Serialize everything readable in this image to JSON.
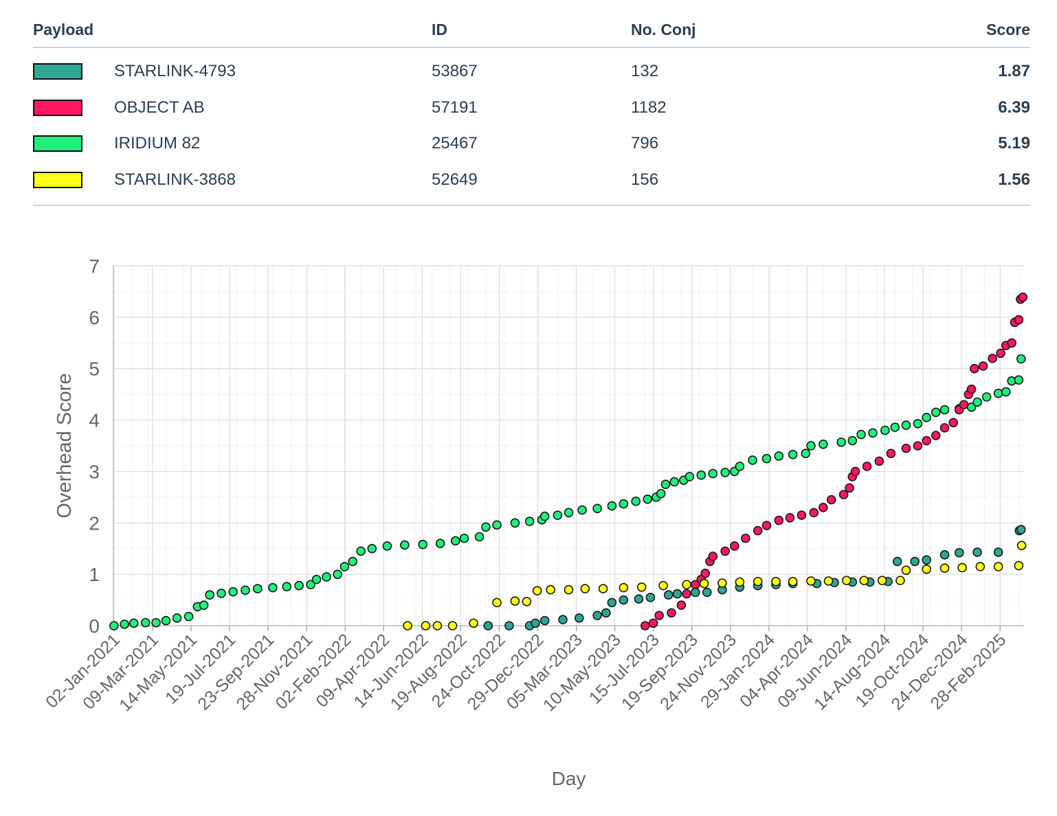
{
  "table": {
    "headers": {
      "payload": "Payload",
      "id": "ID",
      "conj": "No. Conj",
      "score": "Score"
    },
    "rows": [
      {
        "payload": "STARLINK-4793",
        "id": "53867",
        "conj": "132",
        "score": "1.87",
        "color": "#2fa594"
      },
      {
        "payload": "OBJECT AB",
        "id": "57191",
        "conj": "1182",
        "score": "6.39",
        "color": "#ff175f"
      },
      {
        "payload": "IRIDIUM 82",
        "id": "25467",
        "conj": "796",
        "score": "5.19",
        "color": "#1ff07a"
      },
      {
        "payload": "STARLINK-3868",
        "id": "52649",
        "conj": "156",
        "score": "1.56",
        "color": "#ffff1a"
      }
    ]
  },
  "chart_data": {
    "type": "scatter",
    "xlabel": "Day",
    "ylabel": "Overhead Score",
    "xlim": [
      "2021-01-01",
      "2025-04-10"
    ],
    "ylim": [
      0,
      7
    ],
    "yticks": [
      "0",
      "1",
      "2",
      "3",
      "4",
      "5",
      "6",
      "7"
    ],
    "xticks": [
      "02-Jan-2021",
      "09-Mar-2021",
      "14-May-2021",
      "19-Jul-2021",
      "23-Sep-2021",
      "28-Nov-2021",
      "02-Feb-2022",
      "09-Apr-2022",
      "14-Jun-2022",
      "19-Aug-2022",
      "24-Oct-2022",
      "29-Dec-2022",
      "05-Mar-2023",
      "10-May-2023",
      "15-Jul-2023",
      "19-Sep-2023",
      "24-Nov-2023",
      "29-Jan-2024",
      "04-Apr-2024",
      "09-Jun-2024",
      "14-Aug-2024",
      "19-Oct-2024",
      "24-Dec-2024",
      "28-Feb-2025"
    ],
    "grid": true,
    "series": [
      {
        "name": "IRIDIUM 82",
        "color": "#1ff07a",
        "points": [
          [
            "2021-01-02",
            0.0
          ],
          [
            "2021-01-20",
            0.03
          ],
          [
            "2021-02-05",
            0.05
          ],
          [
            "2021-02-25",
            0.06
          ],
          [
            "2021-03-15",
            0.06
          ],
          [
            "2021-04-01",
            0.1
          ],
          [
            "2021-04-20",
            0.15
          ],
          [
            "2021-05-10",
            0.18
          ],
          [
            "2021-05-25",
            0.37
          ],
          [
            "2021-06-05",
            0.4
          ],
          [
            "2021-06-15",
            0.6
          ],
          [
            "2021-07-05",
            0.63
          ],
          [
            "2021-07-25",
            0.66
          ],
          [
            "2021-08-15",
            0.69
          ],
          [
            "2021-09-05",
            0.72
          ],
          [
            "2021-10-01",
            0.74
          ],
          [
            "2021-10-25",
            0.76
          ],
          [
            "2021-11-15",
            0.78
          ],
          [
            "2021-12-05",
            0.8
          ],
          [
            "2021-12-15",
            0.9
          ],
          [
            "2022-01-01",
            0.95
          ],
          [
            "2022-01-20",
            1.0
          ],
          [
            "2022-02-01",
            1.15
          ],
          [
            "2022-02-15",
            1.25
          ],
          [
            "2022-03-01",
            1.45
          ],
          [
            "2022-03-20",
            1.5
          ],
          [
            "2022-04-15",
            1.55
          ],
          [
            "2022-05-15",
            1.57
          ],
          [
            "2022-06-15",
            1.58
          ],
          [
            "2022-07-15",
            1.6
          ],
          [
            "2022-08-10",
            1.65
          ],
          [
            "2022-08-25",
            1.7
          ],
          [
            "2022-09-20",
            1.73
          ],
          [
            "2022-10-01",
            1.92
          ],
          [
            "2022-10-20",
            1.96
          ],
          [
            "2022-11-20",
            2.0
          ],
          [
            "2022-12-15",
            2.03
          ],
          [
            "2023-01-05",
            2.06
          ],
          [
            "2023-01-10",
            2.13
          ],
          [
            "2023-02-01",
            2.15
          ],
          [
            "2023-02-20",
            2.2
          ],
          [
            "2023-03-15",
            2.25
          ],
          [
            "2023-04-10",
            2.28
          ],
          [
            "2023-05-05",
            2.33
          ],
          [
            "2023-05-25",
            2.37
          ],
          [
            "2023-06-15",
            2.42
          ],
          [
            "2023-07-05",
            2.46
          ],
          [
            "2023-07-20",
            2.5
          ],
          [
            "2023-07-28",
            2.57
          ],
          [
            "2023-08-05",
            2.75
          ],
          [
            "2023-08-20",
            2.8
          ],
          [
            "2023-09-05",
            2.83
          ],
          [
            "2023-09-15",
            2.9
          ],
          [
            "2023-10-05",
            2.93
          ],
          [
            "2023-10-25",
            2.96
          ],
          [
            "2023-11-15",
            2.98
          ],
          [
            "2023-12-01",
            3.0
          ],
          [
            "2023-12-10",
            3.1
          ],
          [
            "2024-01-01",
            3.22
          ],
          [
            "2024-01-25",
            3.25
          ],
          [
            "2024-02-15",
            3.3
          ],
          [
            "2024-03-10",
            3.33
          ],
          [
            "2024-04-01",
            3.35
          ],
          [
            "2024-04-10",
            3.5
          ],
          [
            "2024-05-01",
            3.53
          ],
          [
            "2024-06-01",
            3.57
          ],
          [
            "2024-06-20",
            3.6
          ],
          [
            "2024-07-05",
            3.72
          ],
          [
            "2024-07-25",
            3.75
          ],
          [
            "2024-08-15",
            3.8
          ],
          [
            "2024-09-01",
            3.86
          ],
          [
            "2024-09-20",
            3.9
          ],
          [
            "2024-10-10",
            3.93
          ],
          [
            "2024-10-25",
            4.05
          ],
          [
            "2024-11-10",
            4.15
          ],
          [
            "2024-11-25",
            4.2
          ],
          [
            "2024-12-20",
            4.22
          ],
          [
            "2025-01-10",
            4.25
          ],
          [
            "2025-01-20",
            4.35
          ],
          [
            "2025-02-05",
            4.45
          ],
          [
            "2025-02-25",
            4.52
          ],
          [
            "2025-03-10",
            4.55
          ],
          [
            "2025-03-20",
            4.76
          ],
          [
            "2025-04-01",
            4.78
          ],
          [
            "2025-04-05",
            5.19
          ]
        ]
      },
      {
        "name": "OBJECT AB",
        "color": "#ff175f",
        "points": [
          [
            "2023-07-01",
            0.0
          ],
          [
            "2023-07-15",
            0.05
          ],
          [
            "2023-07-25",
            0.2
          ],
          [
            "2023-08-15",
            0.25
          ],
          [
            "2023-09-01",
            0.4
          ],
          [
            "2023-09-10",
            0.62
          ],
          [
            "2023-09-25",
            0.8
          ],
          [
            "2023-10-05",
            0.9
          ],
          [
            "2023-10-12",
            1.02
          ],
          [
            "2023-10-20",
            1.25
          ],
          [
            "2023-10-25",
            1.35
          ],
          [
            "2023-11-15",
            1.45
          ],
          [
            "2023-12-01",
            1.55
          ],
          [
            "2023-12-20",
            1.7
          ],
          [
            "2024-01-10",
            1.85
          ],
          [
            "2024-01-25",
            1.95
          ],
          [
            "2024-02-15",
            2.05
          ],
          [
            "2024-03-05",
            2.1
          ],
          [
            "2024-03-25",
            2.15
          ],
          [
            "2024-04-15",
            2.2
          ],
          [
            "2024-05-01",
            2.3
          ],
          [
            "2024-05-15",
            2.45
          ],
          [
            "2024-06-05",
            2.55
          ],
          [
            "2024-06-15",
            2.68
          ],
          [
            "2024-06-20",
            2.9
          ],
          [
            "2024-06-25",
            3.0
          ],
          [
            "2024-07-15",
            3.1
          ],
          [
            "2024-08-05",
            3.2
          ],
          [
            "2024-08-25",
            3.35
          ],
          [
            "2024-09-20",
            3.45
          ],
          [
            "2024-10-10",
            3.5
          ],
          [
            "2024-10-25",
            3.6
          ],
          [
            "2024-11-10",
            3.7
          ],
          [
            "2024-11-25",
            3.85
          ],
          [
            "2024-12-10",
            3.95
          ],
          [
            "2024-12-20",
            4.2
          ],
          [
            "2024-12-28",
            4.3
          ],
          [
            "2025-01-05",
            4.5
          ],
          [
            "2025-01-10",
            4.6
          ],
          [
            "2025-01-15",
            5.0
          ],
          [
            "2025-01-30",
            5.05
          ],
          [
            "2025-02-15",
            5.2
          ],
          [
            "2025-03-01",
            5.3
          ],
          [
            "2025-03-10",
            5.45
          ],
          [
            "2025-03-20",
            5.5
          ],
          [
            "2025-03-25",
            5.9
          ],
          [
            "2025-04-01",
            5.95
          ],
          [
            "2025-04-04",
            6.35
          ],
          [
            "2025-04-08",
            6.39
          ]
        ]
      },
      {
        "name": "STARLINK-4793",
        "color": "#2fa594",
        "points": [
          [
            "2022-10-05",
            0.0
          ],
          [
            "2022-11-10",
            0.0
          ],
          [
            "2022-12-15",
            0.0
          ],
          [
            "2022-12-25",
            0.05
          ],
          [
            "2023-01-10",
            0.1
          ],
          [
            "2023-02-10",
            0.12
          ],
          [
            "2023-03-10",
            0.15
          ],
          [
            "2023-04-10",
            0.2
          ],
          [
            "2023-04-25",
            0.25
          ],
          [
            "2023-05-05",
            0.45
          ],
          [
            "2023-05-25",
            0.5
          ],
          [
            "2023-06-20",
            0.52
          ],
          [
            "2023-07-10",
            0.55
          ],
          [
            "2023-08-10",
            0.6
          ],
          [
            "2023-08-25",
            0.62
          ],
          [
            "2023-09-25",
            0.65
          ],
          [
            "2023-10-15",
            0.65
          ],
          [
            "2023-11-10",
            0.7
          ],
          [
            "2023-12-10",
            0.75
          ],
          [
            "2024-01-10",
            0.78
          ],
          [
            "2024-02-10",
            0.8
          ],
          [
            "2024-03-10",
            0.82
          ],
          [
            "2024-04-20",
            0.82
          ],
          [
            "2024-05-20",
            0.84
          ],
          [
            "2024-06-20",
            0.85
          ],
          [
            "2024-07-20",
            0.85
          ],
          [
            "2024-08-20",
            0.86
          ],
          [
            "2024-09-05",
            1.25
          ],
          [
            "2024-10-05",
            1.25
          ],
          [
            "2024-10-25",
            1.28
          ],
          [
            "2024-11-25",
            1.38
          ],
          [
            "2024-12-20",
            1.42
          ],
          [
            "2025-01-20",
            1.43
          ],
          [
            "2025-02-25",
            1.43
          ],
          [
            "2025-04-02",
            1.85
          ],
          [
            "2025-04-05",
            1.87
          ]
        ]
      },
      {
        "name": "STARLINK-3868",
        "color": "#ffff1a",
        "points": [
          [
            "2022-05-20",
            0.0
          ],
          [
            "2022-06-20",
            0.0
          ],
          [
            "2022-07-10",
            0.0
          ],
          [
            "2022-08-05",
            0.0
          ],
          [
            "2022-09-10",
            0.05
          ],
          [
            "2022-10-20",
            0.45
          ],
          [
            "2022-11-20",
            0.48
          ],
          [
            "2022-12-10",
            0.47
          ],
          [
            "2022-12-28",
            0.68
          ],
          [
            "2023-01-20",
            0.7
          ],
          [
            "2023-02-20",
            0.7
          ],
          [
            "2023-03-20",
            0.72
          ],
          [
            "2023-04-20",
            0.72
          ],
          [
            "2023-05-25",
            0.74
          ],
          [
            "2023-06-25",
            0.75
          ],
          [
            "2023-08-01",
            0.78
          ],
          [
            "2023-09-10",
            0.8
          ],
          [
            "2023-10-10",
            0.82
          ],
          [
            "2023-11-10",
            0.83
          ],
          [
            "2023-12-10",
            0.85
          ],
          [
            "2024-01-10",
            0.86
          ],
          [
            "2024-02-10",
            0.86
          ],
          [
            "2024-03-10",
            0.86
          ],
          [
            "2024-04-10",
            0.87
          ],
          [
            "2024-05-10",
            0.87
          ],
          [
            "2024-06-10",
            0.88
          ],
          [
            "2024-07-10",
            0.88
          ],
          [
            "2024-08-10",
            0.88
          ],
          [
            "2024-09-10",
            0.88
          ],
          [
            "2024-09-20",
            1.08
          ],
          [
            "2024-10-25",
            1.1
          ],
          [
            "2024-11-25",
            1.12
          ],
          [
            "2024-12-25",
            1.13
          ],
          [
            "2025-01-25",
            1.15
          ],
          [
            "2025-02-25",
            1.15
          ],
          [
            "2025-04-01",
            1.17
          ],
          [
            "2025-04-06",
            1.56
          ]
        ]
      }
    ]
  }
}
